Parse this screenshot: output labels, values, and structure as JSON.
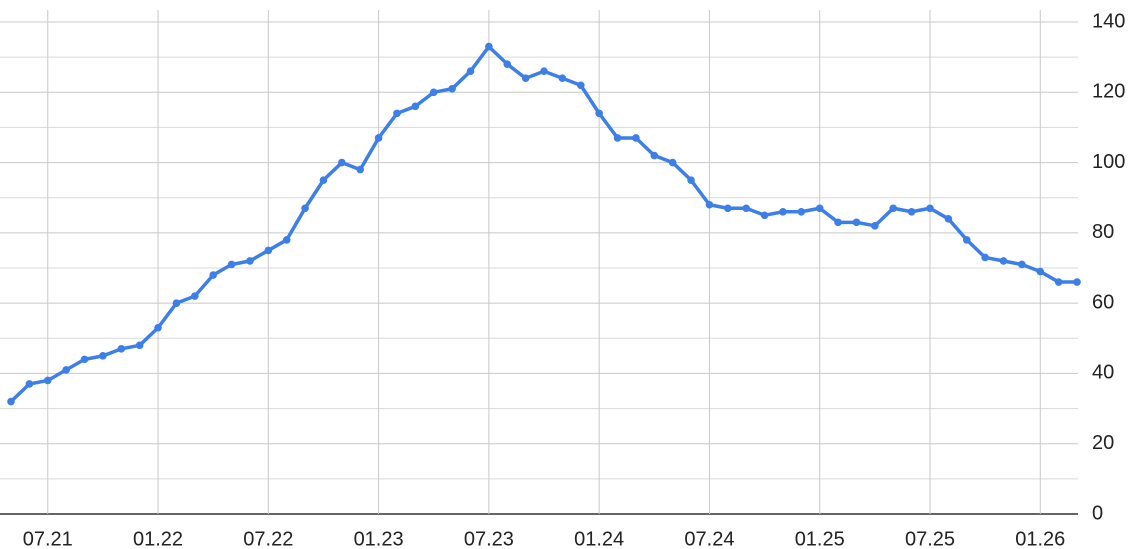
{
  "chart_data": {
    "type": "line",
    "x": [
      "05.21",
      "06.21",
      "07.21",
      "08.21",
      "09.21",
      "10.21",
      "11.21",
      "12.21",
      "01.22",
      "02.22",
      "03.22",
      "04.22",
      "05.22",
      "06.22",
      "07.22",
      "08.22",
      "09.22",
      "10.22",
      "11.22",
      "12.22",
      "01.23",
      "02.23",
      "03.23",
      "04.23",
      "05.23",
      "06.23",
      "07.23",
      "08.23",
      "09.23",
      "10.23",
      "11.23",
      "12.23",
      "01.24",
      "02.24",
      "03.24",
      "04.24",
      "05.24",
      "06.24",
      "07.24",
      "08.24",
      "09.24",
      "10.24",
      "11.24",
      "12.24",
      "01.25",
      "02.25",
      "03.25",
      "04.25",
      "05.25",
      "06.25",
      "07.25",
      "08.25",
      "09.25",
      "10.25",
      "11.25",
      "12.25",
      "01.26",
      "02.26",
      "03.26"
    ],
    "values": [
      32,
      37,
      38,
      41,
      44,
      45,
      47,
      48,
      53,
      60,
      62,
      68,
      71,
      72,
      75,
      78,
      87,
      95,
      100,
      98,
      107,
      114,
      116,
      120,
      121,
      126,
      133,
      128,
      124,
      126,
      124,
      122,
      114,
      107,
      107,
      102,
      100,
      95,
      88,
      87,
      87,
      85,
      86,
      86,
      87,
      83,
      83,
      82,
      87,
      86,
      87,
      84,
      78,
      73,
      72,
      71,
      69,
      66,
      66
    ],
    "color": "#3d7fe9",
    "xticks": [
      "07.21",
      "01.22",
      "07.22",
      "01.23",
      "07.23",
      "01.24",
      "07.24",
      "01.25",
      "07.25",
      "01.26"
    ],
    "ylim": [
      0,
      140
    ],
    "yticks": [
      0,
      20,
      40,
      60,
      80,
      100,
      120,
      140
    ],
    "minor_yticks": [
      10,
      30,
      50,
      70,
      90,
      110,
      130
    ],
    "grid": true,
    "y_axis_side": "right"
  }
}
